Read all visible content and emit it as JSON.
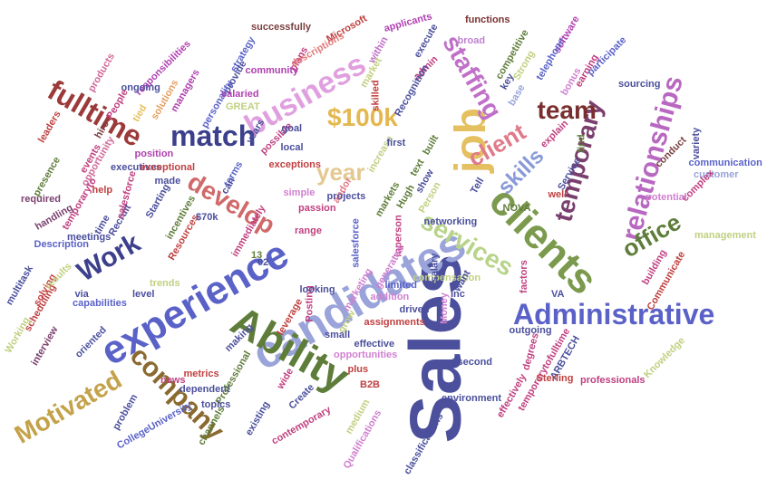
{
  "words": [
    {
      "text": "Sales",
      "color": "#4b4f9c"
    },
    {
      "text": "candidates",
      "color": "#9aa4da"
    },
    {
      "text": "experience",
      "color": "#5a62c8"
    },
    {
      "text": "Ability",
      "color": "#5f7d3a"
    },
    {
      "text": "clients",
      "color": "#7c9a4d"
    },
    {
      "text": "job",
      "color": "#e4c060"
    },
    {
      "text": "Administrative",
      "color": "#5a62c8"
    },
    {
      "text": "company",
      "color": "#8a6a30"
    },
    {
      "text": "Motivated",
      "color": "#c4a24a"
    },
    {
      "text": "relationships",
      "color": "#b868c0"
    },
    {
      "text": "temporary",
      "color": "#7a3f6e"
    },
    {
      "text": "fulltime",
      "color": "#9c3a3a"
    },
    {
      "text": "business",
      "color": "#e0a0e0"
    },
    {
      "text": "match",
      "color": "#3c3f8c"
    },
    {
      "text": "Work",
      "color": "#3c3f8c"
    },
    {
      "text": "develop",
      "color": "#d06a6a"
    },
    {
      "text": "services",
      "color": "#b8d48a"
    },
    {
      "text": "client",
      "color": "#e07a8a"
    },
    {
      "text": "skills",
      "color": "#8a9ad8"
    },
    {
      "text": "staffing",
      "color": "#c070c8"
    },
    {
      "text": "$100k",
      "color": "#e4b850"
    },
    {
      "text": "team",
      "color": "#7a2f2f"
    },
    {
      "text": "year",
      "color": "#e4c890"
    },
    {
      "text": "office",
      "color": "#5f7d3a"
    },
    {
      "text": "successfully",
      "color": "#7a3f3f"
    },
    {
      "text": "Microsoft",
      "color": "#c04040"
    },
    {
      "text": "applicants",
      "color": "#b040b0"
    },
    {
      "text": "functions",
      "color": "#7a2f2f"
    },
    {
      "text": "broad",
      "color": "#c080d0"
    },
    {
      "text": "software",
      "color": "#b040b0"
    },
    {
      "text": "competitive",
      "color": "#5f7d3a"
    },
    {
      "text": "strategy",
      "color": "#5a62c8"
    },
    {
      "text": "plans",
      "color": "#c04080"
    },
    {
      "text": "descriptions",
      "color": "#e07a7a"
    },
    {
      "text": "within",
      "color": "#c070c8"
    },
    {
      "text": "execute",
      "color": "#4b4f9c"
    },
    {
      "text": "telephone",
      "color": "#5a62c8"
    },
    {
      "text": "bonus",
      "color": "#d080d0"
    },
    {
      "text": "earning",
      "color": "#c04080"
    },
    {
      "text": "participate",
      "color": "#5a62c8"
    },
    {
      "text": "Strong",
      "color": "#c0d080"
    },
    {
      "text": "key",
      "color": "#4b4f9c"
    },
    {
      "text": "base",
      "color": "#9aa4da"
    },
    {
      "text": "products",
      "color": "#d06a9a"
    },
    {
      "text": "responsibilities",
      "color": "#b040b0"
    },
    {
      "text": "provide",
      "color": "#4b4f9c"
    },
    {
      "text": "community",
      "color": "#b040b0"
    },
    {
      "text": "market",
      "color": "#c0d080"
    },
    {
      "text": "admin",
      "color": "#c04080"
    },
    {
      "text": "Recognition",
      "color": "#4b4f9c"
    },
    {
      "text": "skilled",
      "color": "#c04040"
    },
    {
      "text": "ongoing",
      "color": "#4b4f9c"
    },
    {
      "text": "managers",
      "color": "#b040b0"
    },
    {
      "text": "solutions",
      "color": "#e4a060"
    },
    {
      "text": "People",
      "color": "#c04080"
    },
    {
      "text": "tied",
      "color": "#e4c060"
    },
    {
      "text": "personality",
      "color": "#5a62c8"
    },
    {
      "text": "salaried",
      "color": "#b040b0"
    },
    {
      "text": "sourcing",
      "color": "#4b4f9c"
    },
    {
      "text": "GREAT",
      "color": "#c0d080"
    },
    {
      "text": "built",
      "color": "#5f7d3a"
    },
    {
      "text": "explain",
      "color": "#c04080"
    },
    {
      "text": "find",
      "color": "#5f7d3a"
    },
    {
      "text": "conduct",
      "color": "#7a3f3f"
    },
    {
      "text": "variety",
      "color": "#4b4f9c"
    },
    {
      "text": "communication",
      "color": "#5a62c8"
    },
    {
      "text": "customer",
      "color": "#9aa4da"
    },
    {
      "text": "complex",
      "color": "#c04080"
    },
    {
      "text": "potential",
      "color": "#d080d0"
    },
    {
      "text": "management",
      "color": "#c0d080"
    },
    {
      "text": "leaders",
      "color": "#c04040"
    },
    {
      "text": "hire",
      "color": "#7a3f3f"
    },
    {
      "text": "events",
      "color": "#c04080"
    },
    {
      "text": "presence",
      "color": "#5f7d3a"
    },
    {
      "text": "required",
      "color": "#7a3f6e"
    },
    {
      "text": "opportunity",
      "color": "#d06a9a"
    },
    {
      "text": "executives",
      "color": "#4b4f9c"
    },
    {
      "text": "position",
      "color": "#b040b0"
    },
    {
      "text": "exceptional",
      "color": "#c04040"
    },
    {
      "text": "years",
      "color": "#4b4f9c"
    },
    {
      "text": "terms",
      "color": "#5a62c8"
    },
    {
      "text": "possible",
      "color": "#c04080"
    },
    {
      "text": "goal",
      "color": "#4b4f9c"
    },
    {
      "text": "local",
      "color": "#4b4f9c"
    },
    {
      "text": "exceptions",
      "color": "#c04040"
    },
    {
      "text": "andor",
      "color": "#e07a8a"
    },
    {
      "text": "increase",
      "color": "#c0d080"
    },
    {
      "text": "first",
      "color": "#4b4f9c"
    },
    {
      "text": "text",
      "color": "#5f7d3a"
    },
    {
      "text": "show",
      "color": "#4b4f9c"
    },
    {
      "text": "Person",
      "color": "#c0d080"
    },
    {
      "text": "Hugh",
      "color": "#5f7d3a"
    },
    {
      "text": "Tell",
      "color": "#4b4f9c"
    },
    {
      "text": "Service",
      "color": "#4b4f9c"
    },
    {
      "text": "well",
      "color": "#c04040"
    },
    {
      "text": "NOVA",
      "color": "#5f7d3a"
    },
    {
      "text": "handling",
      "color": "#7a3f6e"
    },
    {
      "text": "temporaryto",
      "color": "#c04080"
    },
    {
      "text": "help",
      "color": "#c04040"
    },
    {
      "text": "time",
      "color": "#4b4f9c"
    },
    {
      "text": "Recruit",
      "color": "#4b4f9c"
    },
    {
      "text": "meetings",
      "color": "#4b4f9c"
    },
    {
      "text": "Description",
      "color": "#5a62c8"
    },
    {
      "text": "salesforce",
      "color": "#c04080"
    },
    {
      "text": "made",
      "color": "#4b4f9c"
    },
    {
      "text": "Starting",
      "color": "#4b4f9c"
    },
    {
      "text": "incentives",
      "color": "#5f7d3a"
    },
    {
      "text": "Resources",
      "color": "#c04040"
    },
    {
      "text": "$70k",
      "color": "#4b4f9c"
    },
    {
      "text": "can",
      "color": "#4b4f9c"
    },
    {
      "text": "immediately",
      "color": "#c04080"
    },
    {
      "text": "simple",
      "color": "#d080d0"
    },
    {
      "text": "passion",
      "color": "#c04080"
    },
    {
      "text": "projects",
      "color": "#4b4f9c"
    },
    {
      "text": "range",
      "color": "#c04080"
    },
    {
      "text": "markets",
      "color": "#5f7d3a"
    },
    {
      "text": "networking",
      "color": "#4b4f9c"
    },
    {
      "text": "lnperson",
      "color": "#c04080"
    },
    {
      "text": "salesforce",
      "color": "#5a62c8"
    },
    {
      "text": "multitask",
      "color": "#4b4f9c"
    },
    {
      "text": "solving",
      "color": "#c04040"
    },
    {
      "text": "scheduling",
      "color": "#c04040"
    },
    {
      "text": "results",
      "color": "#c0d080"
    },
    {
      "text": "via",
      "color": "#4b4f9c"
    },
    {
      "text": "capabilities",
      "color": "#5a62c8"
    },
    {
      "text": "level",
      "color": "#4b4f9c"
    },
    {
      "text": "trends",
      "color": "#c0d080"
    },
    {
      "text": "Posting",
      "color": "#c04080"
    },
    {
      "text": "looking",
      "color": "#4b4f9c"
    },
    {
      "text": "marketing",
      "color": "#d080d0"
    },
    {
      "text": "02",
      "color": "#4b4f9c"
    },
    {
      "text": "13",
      "color": "#5f7d3a"
    },
    {
      "text": "compensation",
      "color": "#c0d080"
    },
    {
      "text": "generated",
      "color": "#d080d0"
    },
    {
      "text": "limited",
      "color": "#5a62c8"
    },
    {
      "text": "addition",
      "color": "#d080d0"
    },
    {
      "text": "driven",
      "color": "#4b4f9c"
    },
    {
      "text": "salary",
      "color": "#4b4f9c"
    },
    {
      "text": "Money",
      "color": "#d080d0"
    },
    {
      "text": "Inc",
      "color": "#4b4f9c"
    },
    {
      "text": "want",
      "color": "#4b4f9c"
    },
    {
      "text": "factors",
      "color": "#c04080"
    },
    {
      "text": "VA",
      "color": "#4b4f9c"
    },
    {
      "text": "building",
      "color": "#c04080"
    },
    {
      "text": "Communicate",
      "color": "#c04040"
    },
    {
      "text": "Working",
      "color": "#c0d080"
    },
    {
      "text": "interview",
      "color": "#7a3f6e"
    },
    {
      "text": "oriented",
      "color": "#4b4f9c"
    },
    {
      "text": "making",
      "color": "#4b4f9c"
    },
    {
      "text": "metrics",
      "color": "#c04040"
    },
    {
      "text": "leverage",
      "color": "#c04040"
    },
    {
      "text": "grow",
      "color": "#c0d080"
    },
    {
      "text": "small",
      "color": "#4b4f9c"
    },
    {
      "text": "assignments",
      "color": "#c04040"
    },
    {
      "text": "effective",
      "color": "#4b4f9c"
    },
    {
      "text": "opportunities",
      "color": "#d080d0"
    },
    {
      "text": "plus",
      "color": "#c04040"
    },
    {
      "text": "pay",
      "color": "#4b4f9c"
    },
    {
      "text": "outgoing",
      "color": "#4b4f9c"
    },
    {
      "text": "degrees",
      "color": "#c04080"
    },
    {
      "text": "second",
      "color": "#4b4f9c"
    },
    {
      "text": "temporarytofulltime",
      "color": "#c04080"
    },
    {
      "text": "ARBTECH",
      "color": "#4b4f9c"
    },
    {
      "text": "Sterling",
      "color": "#c04040"
    },
    {
      "text": "professionals",
      "color": "#c04080"
    },
    {
      "text": "Knowledge",
      "color": "#c0d080"
    },
    {
      "text": "news",
      "color": "#c04080"
    },
    {
      "text": "dependent",
      "color": "#4b4f9c"
    },
    {
      "text": "Professional",
      "color": "#5f7d3a"
    },
    {
      "text": "wide",
      "color": "#c04080"
    },
    {
      "text": "Create",
      "color": "#4b4f9c"
    },
    {
      "text": "B2B",
      "color": "#c04040"
    },
    {
      "text": "effectively",
      "color": "#c04080"
    },
    {
      "text": "environment",
      "color": "#4b4f9c"
    },
    {
      "text": "problem",
      "color": "#4b4f9c"
    },
    {
      "text": "topics",
      "color": "#4b4f9c"
    },
    {
      "text": "channels",
      "color": "#5f7d3a"
    },
    {
      "text": "CollegeUniversity",
      "color": "#5a62c8"
    },
    {
      "text": "existing",
      "color": "#4b4f9c"
    },
    {
      "text": "contemporary",
      "color": "#c04080"
    },
    {
      "text": "medium",
      "color": "#c0d080"
    },
    {
      "text": "Qualifications",
      "color": "#d080d0"
    },
    {
      "text": "classifications",
      "color": "#4b4f9c"
    }
  ]
}
